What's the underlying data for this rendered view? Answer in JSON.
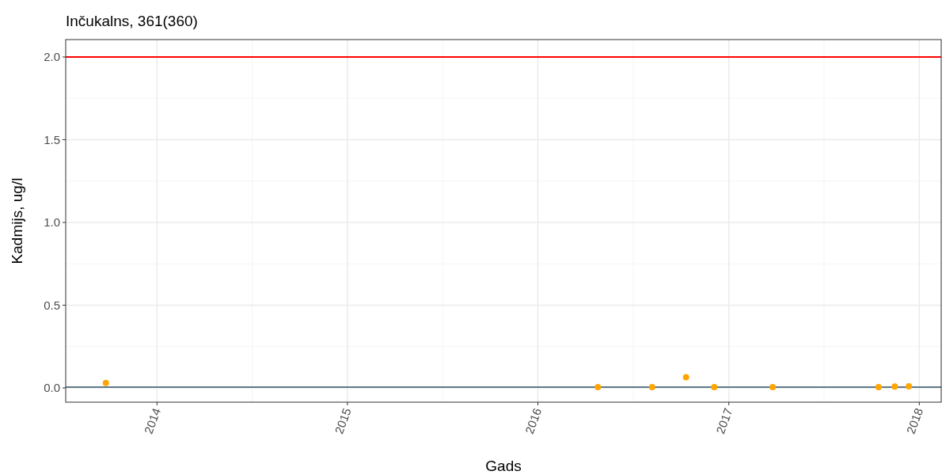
{
  "chart_data": {
    "type": "scatter",
    "title": "Inčukalns, 361(360)",
    "xlabel": "Gads",
    "ylabel": "Kadmijs, ug/l",
    "x": [
      "2013-09-25",
      "2016-04-25",
      "2016-08-07",
      "2016-10-11",
      "2016-12-04",
      "2017-03-26",
      "2017-10-15",
      "2017-11-15",
      "2017-12-12"
    ],
    "series": [
      {
        "color": "#ffa500",
        "values": [
          0.03,
          0.005,
          0.005,
          0.065,
          0.005,
          0.005,
          0.005,
          0.008,
          0.01
        ]
      }
    ],
    "xlim": [
      "2013-07-10",
      "2018-02-12"
    ],
    "xticks": [
      "2014",
      "2015",
      "2016",
      "2017",
      "2018"
    ],
    "ylim": [
      -0.086,
      2.105
    ],
    "yticks": [
      {
        "value": 0,
        "label": "0.0"
      },
      {
        "value": 0.5,
        "label": "0.5"
      },
      {
        "value": 1,
        "label": "1.0"
      },
      {
        "value": 1.5,
        "label": "1.5"
      },
      {
        "value": 2,
        "label": "2.0"
      }
    ],
    "ref_lines": [
      {
        "axis": "y",
        "value": 2,
        "color": "#ff0000"
      },
      {
        "axis": "y",
        "value": 0.005,
        "color": "#5f7a8a"
      }
    ],
    "grid": true,
    "marker": "circle"
  }
}
